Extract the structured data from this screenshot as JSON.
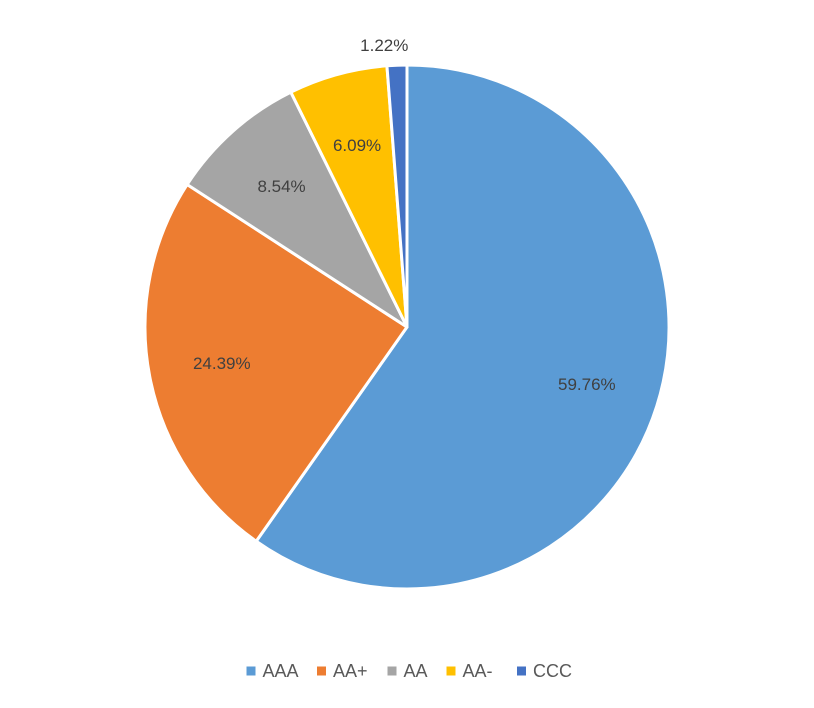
{
  "chart_data": {
    "type": "pie",
    "title": "",
    "categories": [
      "AAA",
      "AA+",
      "AA",
      "AA-",
      "CCC"
    ],
    "values": [
      59.76,
      24.39,
      8.54,
      6.09,
      1.22
    ],
    "labels": [
      "59.76%",
      "24.39%",
      "8.54%",
      "6.09%",
      "1.22%"
    ],
    "colors": [
      "#5B9BD5",
      "#ED7D31",
      "#A5A5A5",
      "#FFC000",
      "#4472C4"
    ],
    "legend": {
      "position": "bottom",
      "entries": [
        "AAA",
        "AA+",
        "AA",
        "AA-",
        "CCC"
      ]
    }
  }
}
